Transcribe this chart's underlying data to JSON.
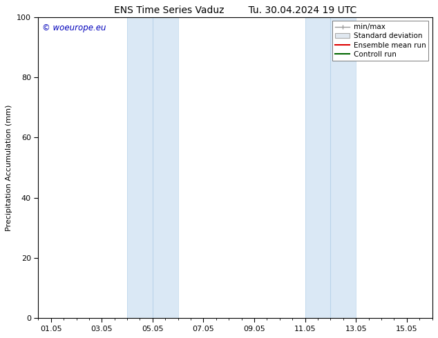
{
  "title_left": "ENS Time Series Vaduz",
  "title_right": "Tu. 30.04.2024 19 UTC",
  "ylabel": "Precipitation Accumulation (mm)",
  "ylim": [
    0,
    100
  ],
  "yticks": [
    0,
    20,
    40,
    60,
    80,
    100
  ],
  "xlim": [
    0,
    15.5
  ],
  "xtick_labels": [
    "01.05",
    "03.05",
    "05.05",
    "07.05",
    "09.05",
    "11.05",
    "13.05",
    "15.05"
  ],
  "xtick_positions": [
    0.5,
    2.5,
    4.5,
    6.5,
    8.5,
    10.5,
    12.5,
    14.5
  ],
  "shaded_bands": [
    {
      "x_start": 3.5,
      "x_end": 4.5,
      "mid": 4.0
    },
    {
      "x_start": 4.5,
      "x_end": 5.5,
      "mid": 5.0
    },
    {
      "x_start": 10.5,
      "x_end": 11.5,
      "mid": 11.0
    },
    {
      "x_start": 11.5,
      "x_end": 12.5,
      "mid": 12.0
    }
  ],
  "shaded_color": "#dae8f5",
  "shaded_edge_color": "#b8d4ea",
  "background_color": "#ffffff",
  "watermark_text": "© woeurope.eu",
  "watermark_color": "#0000bb",
  "legend_labels": [
    "min/max",
    "Standard deviation",
    "Ensemble mean run",
    "Controll run"
  ],
  "legend_colors": [
    "#aaaaaa",
    "#dae8f5",
    "#dd0000",
    "#006600"
  ],
  "font_family": "DejaVu Sans",
  "title_fontsize": 10,
  "label_fontsize": 8,
  "tick_fontsize": 8,
  "legend_fontsize": 7.5
}
